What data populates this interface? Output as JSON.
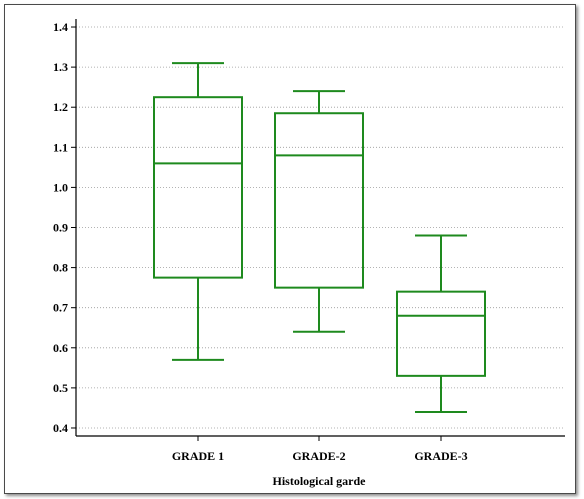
{
  "chart_data": {
    "type": "box",
    "title": "",
    "xlabel": "Histological garde",
    "ylabel": "",
    "ylim": [
      0.38,
      1.42
    ],
    "y_ticks": [
      "0.4",
      "0.5",
      "0.6",
      "0.7",
      "0.8",
      "0.9",
      "1.0",
      "1.1",
      "1.2",
      "1.3",
      "1.4"
    ],
    "grid": "horizontal dotted",
    "box_color": "#1e8a1e",
    "categories": [
      "GRADE 1",
      "GRADE-2",
      "GRADE-3"
    ],
    "boxes": [
      {
        "category": "GRADE 1",
        "min": 0.57,
        "q1": 0.775,
        "median": 1.06,
        "q3": 1.225,
        "max": 1.31
      },
      {
        "category": "GRADE-2",
        "min": 0.64,
        "q1": 0.75,
        "median": 1.08,
        "q3": 1.185,
        "max": 1.24
      },
      {
        "category": "GRADE-3",
        "min": 0.44,
        "q1": 0.53,
        "median": 0.68,
        "q3": 0.74,
        "max": 0.88
      }
    ]
  }
}
